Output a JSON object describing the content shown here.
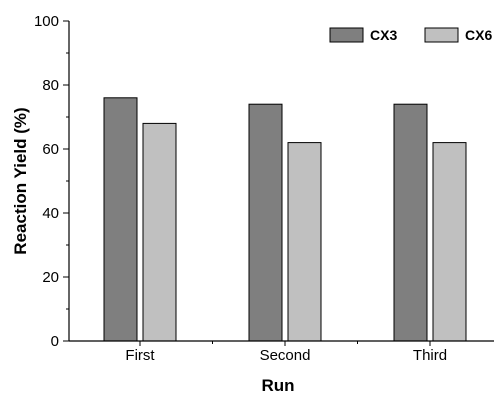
{
  "chart_data": {
    "type": "bar",
    "categories": [
      "First",
      "Second",
      "Third"
    ],
    "series": [
      {
        "name": "CX3",
        "values": [
          76,
          74,
          74
        ],
        "color": "#7f7f7f"
      },
      {
        "name": "CX6",
        "values": [
          68,
          62,
          62
        ],
        "color": "#c0c0c0"
      }
    ],
    "xlabel": "Run",
    "ylabel": "Reaction Yield (%)",
    "ylim": [
      0,
      100
    ],
    "yticks": [
      0,
      20,
      40,
      60,
      80,
      100
    ],
    "legend_position": "top-right",
    "grid": false
  }
}
